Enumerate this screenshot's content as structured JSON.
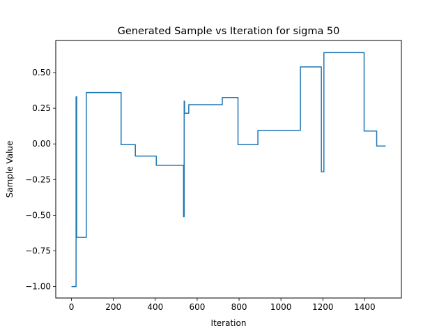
{
  "chart_data": {
    "type": "line",
    "title": "Generated Sample vs Iteration for sigma 50",
    "xlabel": "Iteration",
    "ylabel": "Sample Value",
    "xlim": [
      -75,
      1575
    ],
    "ylim": [
      -1.08,
      0.725
    ],
    "xticks": [
      0,
      200,
      400,
      600,
      800,
      1000,
      1200,
      1400
    ],
    "xtick_labels": [
      "0",
      "200",
      "400",
      "600",
      "800",
      "1000",
      "1200",
      "1400"
    ],
    "yticks": [
      -1.0,
      -0.75,
      -0.5,
      -0.25,
      0.0,
      0.25,
      0.5
    ],
    "ytick_labels": [
      "−1.00",
      "−0.75",
      "−0.50",
      "−0.25",
      "0.00",
      "0.25",
      "0.50"
    ],
    "grid": false,
    "legend": "none",
    "series": [
      {
        "color": "#1f77b4",
        "x": [
          0,
          22,
          22,
          25,
          25,
          71,
          71,
          237,
          237,
          305,
          305,
          405,
          405,
          535,
          535,
          538,
          538,
          540,
          540,
          560,
          560,
          720,
          720,
          795,
          795,
          890,
          890,
          1093,
          1093,
          1193,
          1193,
          1205,
          1205,
          1397,
          1397,
          1457,
          1457,
          1500
        ],
        "y": [
          -1.0,
          -1.0,
          0.33,
          0.33,
          -0.655,
          -0.655,
          0.36,
          0.36,
          -0.005,
          -0.005,
          -0.085,
          -0.085,
          -0.15,
          -0.15,
          -0.51,
          -0.51,
          0.3,
          0.3,
          0.215,
          0.215,
          0.275,
          0.275,
          0.325,
          0.325,
          -0.005,
          -0.005,
          0.095,
          0.095,
          0.54,
          0.54,
          -0.195,
          -0.195,
          0.64,
          0.64,
          0.09,
          0.09,
          -0.015,
          -0.015
        ]
      }
    ]
  }
}
